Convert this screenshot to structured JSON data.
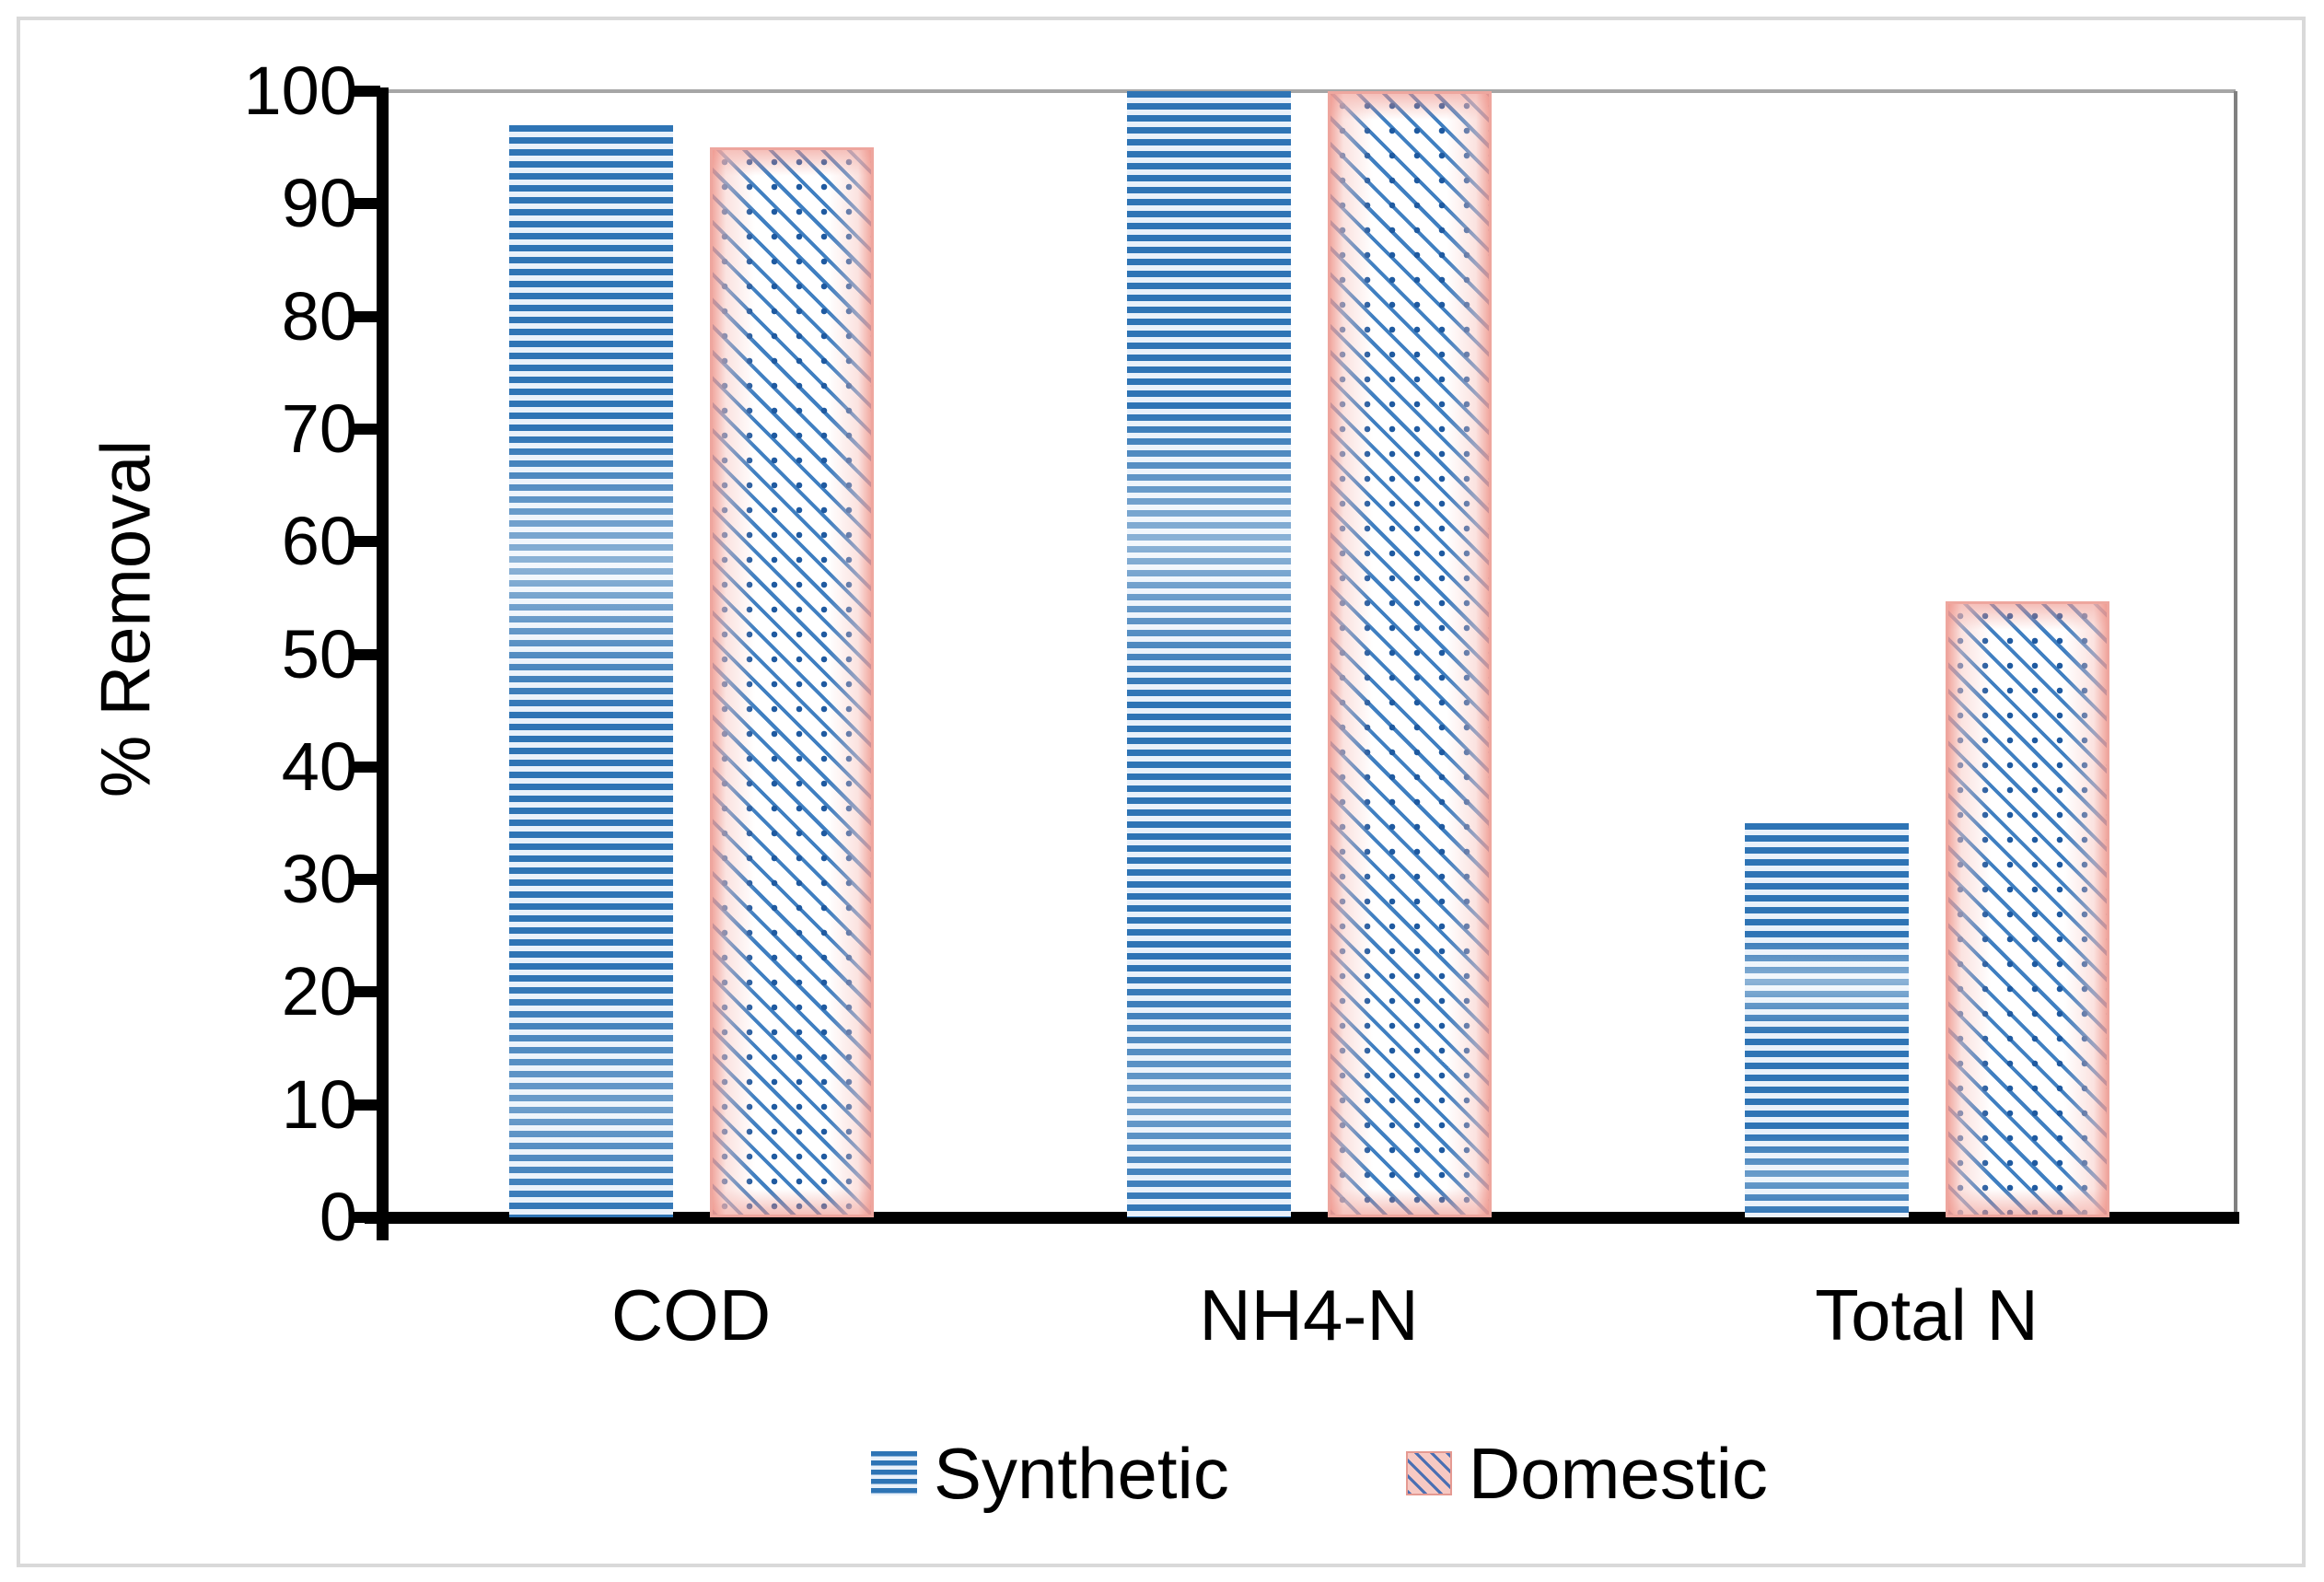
{
  "figure": {
    "background": "#ffffff",
    "border_color": "#d9d9d9"
  },
  "chart_data": {
    "type": "bar",
    "title": "",
    "categories": [
      "COD",
      "NH4-N",
      "Total N"
    ],
    "series": [
      {
        "name": "Synthetic",
        "values": [
          97,
          100,
          35
        ],
        "pattern": "horizontal-stripes",
        "color": "#2e74b5"
      },
      {
        "name": "Domestic",
        "values": [
          95,
          100,
          54.7
        ],
        "pattern": "diagonal-dotted-hatch",
        "color": "#eea69e",
        "hatch_color": "#2e74b5"
      }
    ],
    "xlabel": "",
    "ylabel": "% Removal",
    "ylim": [
      0,
      100
    ],
    "yticks": [
      0,
      10,
      20,
      30,
      40,
      50,
      60,
      70,
      80,
      90,
      100
    ],
    "grid": "top-gridline-only",
    "gridline_color": "#a6a6a6",
    "plot_right_border_color": "#808080",
    "axis_color": "#000000",
    "legend_position": "bottom-center"
  }
}
